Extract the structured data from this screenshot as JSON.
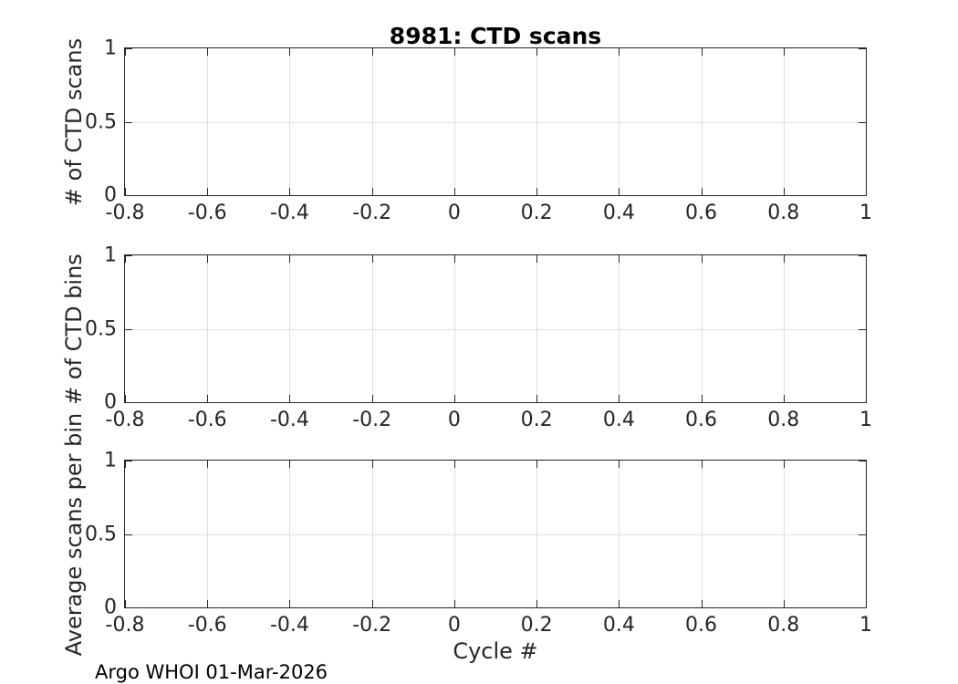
{
  "figure": {
    "title": "8981: CTD scans",
    "xlabel": "Cycle #",
    "footer": "Argo WHOI 01-Mar-2026",
    "colors": {
      "axis": "#262626",
      "grid": "#dedede",
      "tick_text": "#262626",
      "title_text": "#000000",
      "background": "#ffffff"
    }
  },
  "chart_data": [
    {
      "type": "line",
      "title": "8981: CTD scans",
      "ylabel": "# of CTD scans",
      "xlabel": "",
      "xlim": [
        -0.8,
        1
      ],
      "ylim": [
        0,
        1
      ],
      "x_ticks": [
        -0.8,
        -0.6,
        -0.4,
        -0.2,
        0,
        0.2,
        0.4,
        0.6,
        0.8,
        1
      ],
      "y_ticks": [
        0,
        0.5,
        1
      ],
      "grid": true,
      "box": true,
      "series": []
    },
    {
      "type": "line",
      "title": "",
      "ylabel": "# of CTD bins",
      "xlabel": "",
      "xlim": [
        -0.8,
        1
      ],
      "ylim": [
        0,
        1
      ],
      "x_ticks": [
        -0.8,
        -0.6,
        -0.4,
        -0.2,
        0,
        0.2,
        0.4,
        0.6,
        0.8,
        1
      ],
      "y_ticks": [
        0,
        0.5,
        1
      ],
      "grid": true,
      "box": true,
      "series": []
    },
    {
      "type": "line",
      "title": "",
      "ylabel": "Average scans per bin",
      "xlabel": "Cycle #",
      "xlim": [
        -0.8,
        1
      ],
      "ylim": [
        0,
        1
      ],
      "x_ticks": [
        -0.8,
        -0.6,
        -0.4,
        -0.2,
        0,
        0.2,
        0.4,
        0.6,
        0.8,
        1
      ],
      "y_ticks": [
        0,
        0.5,
        1
      ],
      "grid": true,
      "box": true,
      "series": []
    }
  ]
}
